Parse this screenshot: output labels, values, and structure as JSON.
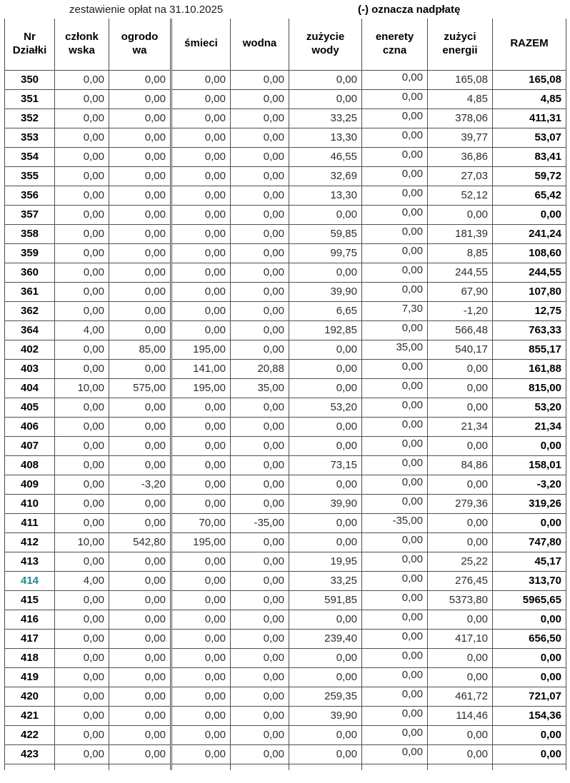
{
  "title": {
    "left": "zestawienie opłat na 31.10.2025",
    "right": "(-) oznacza nadpłatę"
  },
  "table": {
    "columns": [
      {
        "key": "nr-dzialki",
        "label": "Nr\nDziałki"
      },
      {
        "key": "czlonkowska",
        "label": "członk\nwska"
      },
      {
        "key": "ogrodowa",
        "label": "ogrodo\nwa"
      },
      {
        "key": "smieci",
        "label": "śmieci"
      },
      {
        "key": "wodna",
        "label": "wodna"
      },
      {
        "key": "zuzycie-wody",
        "label": "zużycie\nwody"
      },
      {
        "key": "eneretyczna",
        "label": "enerety\nczna"
      },
      {
        "key": "zuzyci-energii",
        "label": "zużyci\nenergii"
      },
      {
        "key": "razem",
        "label": "RAZEM"
      }
    ],
    "highlight": {
      "plot": "414",
      "color": "#1a8a8c"
    },
    "rows": [
      [
        "350",
        "0,00",
        "0,00",
        "0,00",
        "0,00",
        "0,00",
        "0,00",
        "165,08",
        "165,08"
      ],
      [
        "351",
        "0,00",
        "0,00",
        "0,00",
        "0,00",
        "0,00",
        "0,00",
        "4,85",
        "4,85"
      ],
      [
        "352",
        "0,00",
        "0,00",
        "0,00",
        "0,00",
        "33,25",
        "0,00",
        "378,06",
        "411,31"
      ],
      [
        "353",
        "0,00",
        "0,00",
        "0,00",
        "0,00",
        "13,30",
        "0,00",
        "39,77",
        "53,07"
      ],
      [
        "354",
        "0,00",
        "0,00",
        "0,00",
        "0,00",
        "46,55",
        "0,00",
        "36,86",
        "83,41"
      ],
      [
        "355",
        "0,00",
        "0,00",
        "0,00",
        "0,00",
        "32,69",
        "0,00",
        "27,03",
        "59,72"
      ],
      [
        "356",
        "0,00",
        "0,00",
        "0,00",
        "0,00",
        "13,30",
        "0,00",
        "52,12",
        "65,42"
      ],
      [
        "357",
        "0,00",
        "0,00",
        "0,00",
        "0,00",
        "0,00",
        "0,00",
        "0,00",
        "0,00"
      ],
      [
        "358",
        "0,00",
        "0,00",
        "0,00",
        "0,00",
        "59,85",
        "0,00",
        "181,39",
        "241,24"
      ],
      [
        "359",
        "0,00",
        "0,00",
        "0,00",
        "0,00",
        "99,75",
        "0,00",
        "8,85",
        "108,60"
      ],
      [
        "360",
        "0,00",
        "0,00",
        "0,00",
        "0,00",
        "0,00",
        "0,00",
        "244,55",
        "244,55"
      ],
      [
        "361",
        "0,00",
        "0,00",
        "0,00",
        "0,00",
        "39,90",
        "0,00",
        "67,90",
        "107,80"
      ],
      [
        "362",
        "0,00",
        "0,00",
        "0,00",
        "0,00",
        "6,65",
        "7,30",
        "-1,20",
        "12,75"
      ],
      [
        "364",
        "4,00",
        "0,00",
        "0,00",
        "0,00",
        "192,85",
        "0,00",
        "566,48",
        "763,33"
      ],
      [
        "402",
        "0,00",
        "85,00",
        "195,00",
        "0,00",
        "0,00",
        "35,00",
        "540,17",
        "855,17"
      ],
      [
        "403",
        "0,00",
        "0,00",
        "141,00",
        "20,88",
        "0,00",
        "0,00",
        "0,00",
        "161,88"
      ],
      [
        "404",
        "10,00",
        "575,00",
        "195,00",
        "35,00",
        "0,00",
        "0,00",
        "0,00",
        "815,00"
      ],
      [
        "405",
        "0,00",
        "0,00",
        "0,00",
        "0,00",
        "53,20",
        "0,00",
        "0,00",
        "53,20"
      ],
      [
        "406",
        "0,00",
        "0,00",
        "0,00",
        "0,00",
        "0,00",
        "0,00",
        "21,34",
        "21,34"
      ],
      [
        "407",
        "0,00",
        "0,00",
        "0,00",
        "0,00",
        "0,00",
        "0,00",
        "0,00",
        "0,00"
      ],
      [
        "408",
        "0,00",
        "0,00",
        "0,00",
        "0,00",
        "73,15",
        "0,00",
        "84,86",
        "158,01"
      ],
      [
        "409",
        "0,00",
        "-3,20",
        "0,00",
        "0,00",
        "0,00",
        "0,00",
        "0,00",
        "-3,20"
      ],
      [
        "410",
        "0,00",
        "0,00",
        "0,00",
        "0,00",
        "39,90",
        "0,00",
        "279,36",
        "319,26"
      ],
      [
        "411",
        "0,00",
        "0,00",
        "70,00",
        "-35,00",
        "0,00",
        "-35,00",
        "0,00",
        "0,00"
      ],
      [
        "412",
        "10,00",
        "542,80",
        "195,00",
        "0,00",
        "0,00",
        "0,00",
        "0,00",
        "747,80"
      ],
      [
        "413",
        "0,00",
        "0,00",
        "0,00",
        "0,00",
        "19,95",
        "0,00",
        "25,22",
        "45,17"
      ],
      [
        "414",
        "4,00",
        "0,00",
        "0,00",
        "0,00",
        "33,25",
        "0,00",
        "276,45",
        "313,70"
      ],
      [
        "415",
        "0,00",
        "0,00",
        "0,00",
        "0,00",
        "591,85",
        "0,00",
        "5373,80",
        "5965,65"
      ],
      [
        "416",
        "0,00",
        "0,00",
        "0,00",
        "0,00",
        "0,00",
        "0,00",
        "0,00",
        "0,00"
      ],
      [
        "417",
        "0,00",
        "0,00",
        "0,00",
        "0,00",
        "239,40",
        "0,00",
        "417,10",
        "656,50"
      ],
      [
        "418",
        "0,00",
        "0,00",
        "0,00",
        "0,00",
        "0,00",
        "0,00",
        "0,00",
        "0,00"
      ],
      [
        "419",
        "0,00",
        "0,00",
        "0,00",
        "0,00",
        "0,00",
        "0,00",
        "0,00",
        "0,00"
      ],
      [
        "420",
        "0,00",
        "0,00",
        "0,00",
        "0,00",
        "259,35",
        "0,00",
        "461,72",
        "721,07"
      ],
      [
        "421",
        "0,00",
        "0,00",
        "0,00",
        "0,00",
        "39,90",
        "0,00",
        "114,46",
        "154,36"
      ],
      [
        "422",
        "0,00",
        "0,00",
        "0,00",
        "0,00",
        "0,00",
        "0,00",
        "0,00",
        "0,00"
      ],
      [
        "423",
        "0,00",
        "0,00",
        "0,00",
        "0,00",
        "0,00",
        "0,00",
        "0,00",
        "0,00"
      ]
    ]
  }
}
